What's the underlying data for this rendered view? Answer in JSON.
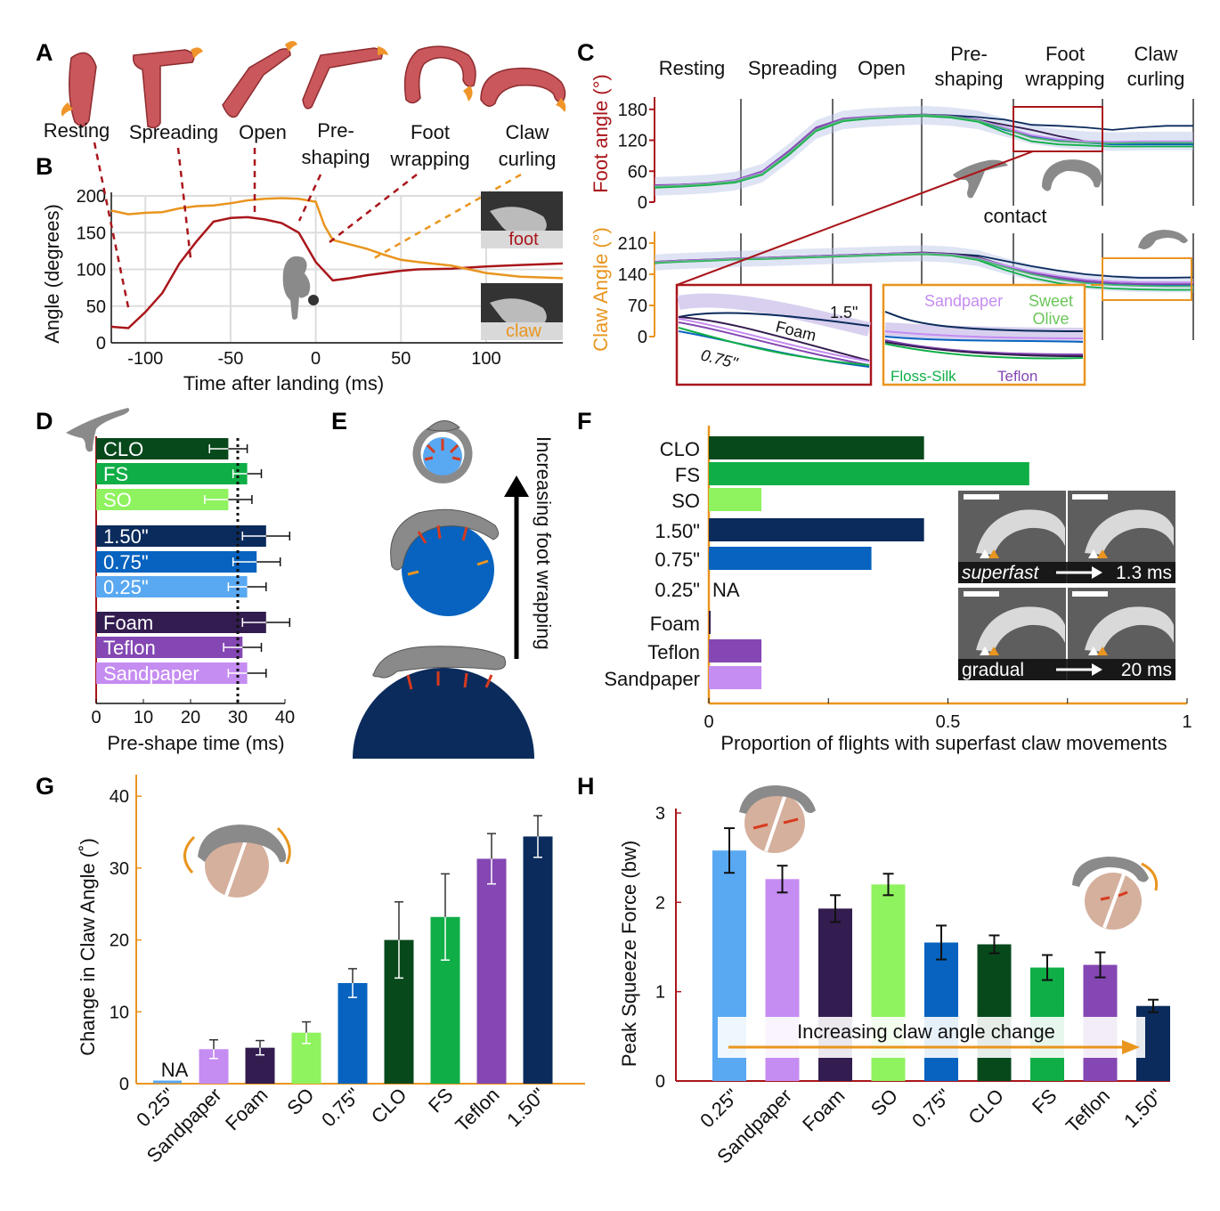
{
  "panel_letters": [
    "A",
    "B",
    "C",
    "D",
    "E",
    "F",
    "G",
    "H"
  ],
  "colors": {
    "foot": "#a9161b",
    "claw": "#e9951f",
    "CLO": "#08491c",
    "FS": "#0fae46",
    "SO": "#8ff25f",
    "d150": "#0b2b5c",
    "d075": "#0763bf",
    "d025": "#59a8f2",
    "Foam": "#331c4f",
    "Teflon": "#8447b3",
    "Sandpaper": "#c58cf2",
    "gray": "#8a8a8a"
  },
  "panelA": {
    "stages": [
      "Resting",
      "Spreading",
      "Open",
      "Pre-\nshaping",
      "Foot\nwrapping",
      "Claw\ncurling"
    ]
  },
  "panelB": {
    "chart_data": {
      "type": "line",
      "ylabel": "Angle (degrees)",
      "xlabel": "Time after landing (ms)",
      "xlim": [
        -120,
        145
      ],
      "ylim": [
        0,
        200
      ],
      "xticks": [
        -100,
        -50,
        0,
        50,
        100
      ],
      "yticks": [
        0,
        50,
        100,
        150,
        200
      ],
      "series": [
        {
          "name": "foot",
          "x": [
            -120,
            -110,
            -100,
            -90,
            -80,
            -70,
            -60,
            -50,
            -40,
            -30,
            -20,
            -10,
            0,
            10,
            20,
            30,
            40,
            50,
            60,
            80,
            100,
            120,
            145
          ],
          "y": [
            22,
            20,
            42,
            68,
            108,
            138,
            165,
            170,
            171,
            168,
            163,
            150,
            110,
            85,
            88,
            92,
            95,
            98,
            100,
            101,
            104,
            106,
            108
          ]
        },
        {
          "name": "claw",
          "x": [
            -120,
            -110,
            -100,
            -90,
            -80,
            -70,
            -60,
            -50,
            -40,
            -30,
            -20,
            -10,
            0,
            5,
            10,
            20,
            30,
            40,
            50,
            60,
            80,
            100,
            120,
            145
          ],
          "y": [
            180,
            175,
            177,
            178,
            183,
            186,
            187,
            190,
            194,
            196,
            197,
            196,
            192,
            160,
            140,
            134,
            128,
            120,
            113,
            110,
            105,
            95,
            90,
            88
          ]
        }
      ],
      "inset_labels": [
        "foot",
        "claw"
      ]
    }
  },
  "panelC": {
    "headers": [
      "Resting",
      "Spreading",
      "Open",
      "Pre-\nshaping",
      "Foot\nwrapping",
      "Claw\ncurling"
    ],
    "contact_label": "contact",
    "foot": {
      "ylabel": "Foot angle (°)",
      "yticks": [
        0,
        60,
        120,
        180
      ],
      "chart_data": {
        "type": "line",
        "ylim": [
          0,
          190
        ],
        "x": [
          0,
          0.05,
          0.1,
          0.15,
          0.2,
          0.25,
          0.3,
          0.35,
          0.4,
          0.45,
          0.5,
          0.55,
          0.6,
          0.65,
          0.7,
          0.75,
          0.8,
          0.85,
          0.9,
          0.95,
          1.0
        ],
        "series": [
          {
            "name": "1.5\"",
            "y": [
              30,
              32,
              35,
              40,
              55,
              95,
              140,
              160,
              165,
              168,
              170,
              168,
              165,
              160,
              150,
              148,
              145,
              140,
              145,
              148,
              148
            ]
          },
          {
            "name": "Foam",
            "y": [
              32,
              34,
              36,
              42,
              58,
              98,
              142,
              160,
              164,
              166,
              168,
              166,
              160,
              150,
              140,
              128,
              118,
              115,
              115,
              114,
              114
            ]
          },
          {
            "name": "0.75\"",
            "y": [
              30,
              31,
              34,
              40,
              56,
              94,
              140,
              158,
              163,
              166,
              168,
              165,
              158,
              140,
              128,
              120,
              115,
              112,
              112,
              112,
              112
            ]
          },
          {
            "name": "Teflon",
            "y": [
              33,
              34,
              37,
              43,
              60,
              100,
              145,
              162,
              166,
              168,
              170,
              167,
              160,
              143,
              126,
              118,
              116,
              115,
              116,
              116,
              116
            ]
          },
          {
            "name": "Sandpaper",
            "y": [
              31,
              33,
              36,
              42,
              57,
              96,
              141,
              160,
              165,
              167,
              169,
              166,
              159,
              145,
              130,
              122,
              118,
              117,
              118,
              118,
              118
            ]
          },
          {
            "name": "Floss-Silk",
            "y": [
              28,
              30,
              33,
              38,
              53,
              92,
              138,
              157,
              162,
              165,
              167,
              164,
              156,
              135,
              118,
              112,
              110,
              108,
              108,
              108,
              108
            ]
          },
          {
            "name": "Sweet Olive",
            "y": [
              30,
              32,
              35,
              40,
              55,
              95,
              140,
              159,
              164,
              167,
              169,
              166,
              158,
              142,
              125,
              118,
              115,
              114,
              115,
              115,
              115
            ]
          }
        ]
      }
    },
    "claw": {
      "ylabel": "Claw Angle (°)",
      "yticks": [
        0,
        70,
        140,
        210
      ],
      "chart_data": {
        "type": "line",
        "ylim": [
          0,
          220
        ],
        "x": [
          0,
          0.05,
          0.1,
          0.15,
          0.2,
          0.25,
          0.3,
          0.35,
          0.4,
          0.45,
          0.5,
          0.55,
          0.6,
          0.65,
          0.7,
          0.75,
          0.8,
          0.85,
          0.9,
          0.95,
          1.0
        ],
        "series": [
          {
            "name": "1.5\"",
            "y": [
              165,
              170,
              172,
              175,
              176,
              178,
              180,
              182,
              184,
              186,
              188,
              186,
              182,
              170,
              158,
              148,
              140,
              135,
              132,
              132,
              133
            ]
          },
          {
            "name": "Foam",
            "y": [
              168,
              171,
              173,
              175,
              177,
              179,
              181,
              183,
              185,
              187,
              189,
              186,
              178,
              160,
              145,
              135,
              125,
              120,
              118,
              117,
              117
            ]
          },
          {
            "name": "0.75\"",
            "y": [
              166,
              169,
              171,
              174,
              175,
              177,
              179,
              181,
              183,
              185,
              186,
              183,
              175,
              158,
              142,
              130,
              122,
              118,
              116,
              115,
              115
            ]
          },
          {
            "name": "Teflon",
            "y": [
              168,
              171,
              173,
              176,
              177,
              179,
              181,
              183,
              185,
              187,
              188,
              185,
              176,
              158,
              142,
              132,
              124,
              120,
              118,
              118,
              118
            ]
          },
          {
            "name": "Sandpaper",
            "y": [
              167,
              170,
              172,
              175,
              176,
              178,
              180,
              182,
              184,
              186,
              187,
              184,
              176,
              160,
              146,
              136,
              128,
              124,
              122,
              122,
              122
            ]
          },
          {
            "name": "Floss-Silk",
            "y": [
              165,
              168,
              170,
              173,
              174,
              176,
              178,
              180,
              182,
              184,
              185,
              182,
              172,
              150,
              132,
              120,
              112,
              108,
              106,
              105,
              105
            ]
          },
          {
            "name": "Sweet Olive",
            "y": [
              166,
              169,
              171,
              174,
              175,
              177,
              179,
              181,
              183,
              185,
              186,
              183,
              174,
              156,
              140,
              128,
              120,
              116,
              114,
              113,
              113
            ]
          }
        ]
      }
    },
    "inset_left": {
      "labels": [
        "1.5\"",
        "Foam",
        "0.75\""
      ]
    },
    "inset_right": {
      "labels": [
        "Sandpaper",
        "Sweet\nOlive",
        "Floss-Silk",
        "Teflon"
      ]
    }
  },
  "panelD": {
    "chart_data": {
      "type": "bar",
      "xlabel": "Pre-shape time (ms)",
      "xlim": [
        0,
        40
      ],
      "xticks": [
        0,
        10,
        20,
        30,
        40
      ],
      "reference_line": 30,
      "categories": [
        "CLO",
        "FS",
        "SO",
        "1.50\"",
        "0.75\"",
        "0.25\"",
        "Foam",
        "Teflon",
        "Sandpaper"
      ],
      "values": [
        28,
        32,
        28,
        36,
        34,
        32,
        36,
        31,
        32
      ],
      "errors": [
        4,
        3,
        5,
        5,
        5,
        4,
        5,
        4,
        4
      ],
      "color_keys": [
        "CLO",
        "FS",
        "SO",
        "d150",
        "d075",
        "d025",
        "Foam",
        "Teflon",
        "Sandpaper"
      ]
    }
  },
  "panelE": {
    "label": "Increasing foot wrapping"
  },
  "panelF": {
    "chart_data": {
      "type": "bar",
      "xlabel": "Proportion of flights with superfast claw movements",
      "xlim": [
        0,
        1
      ],
      "xticks": [
        0,
        0.5,
        1
      ],
      "xtick_labels": [
        "0",
        "0.5",
        "1"
      ],
      "categories": [
        "CLO",
        "FS",
        "SO",
        "1.50\"",
        "0.75\"",
        "0.25\"",
        "Foam",
        "Teflon",
        "Sandpaper"
      ],
      "values": [
        0.45,
        0.67,
        0.11,
        0.45,
        0.34,
        null,
        0.003,
        0.11,
        0.11
      ],
      "color_keys": [
        "CLO",
        "FS",
        "SO",
        "d150",
        "d075",
        "d025",
        "Foam",
        "Teflon",
        "Sandpaper"
      ],
      "na_label": "NA"
    },
    "insets": [
      {
        "left": "superfast",
        "right": "1.3 ms"
      },
      {
        "left": "gradual",
        "right": "20 ms"
      }
    ]
  },
  "panelG": {
    "chart_data": {
      "type": "bar",
      "ylabel": "Change in Claw Angle (˚)",
      "ylim": [
        0,
        43
      ],
      "yticks": [
        0,
        10,
        20,
        30,
        40
      ],
      "categories": [
        "0.25\"",
        "Sandpaper",
        "Foam",
        "SO",
        "0.75\"",
        "CLO",
        "FS",
        "Teflon",
        "1.50\""
      ],
      "values": [
        0,
        4.8,
        5.0,
        7.1,
        14.0,
        20.0,
        23.2,
        31.3,
        34.4
      ],
      "errors": [
        0,
        1.3,
        1.0,
        1.5,
        2.0,
        5.3,
        6.0,
        3.5,
        2.9
      ],
      "color_keys": [
        "d025",
        "Sandpaper",
        "Foam",
        "SO",
        "d075",
        "CLO",
        "FS",
        "Teflon",
        "d150"
      ],
      "na_label": "NA"
    }
  },
  "panelH": {
    "chart_data": {
      "type": "bar",
      "ylabel": "Peak Squeeze Force (bw)",
      "ylim": [
        0,
        3.05
      ],
      "yticks": [
        0,
        1,
        2,
        3
      ],
      "categories": [
        "0.25\"",
        "Sandpaper",
        "Foam",
        "SO",
        "0.75\"",
        "CLO",
        "FS",
        "Teflon",
        "1.50\""
      ],
      "values": [
        2.58,
        2.26,
        1.93,
        2.2,
        1.55,
        1.53,
        1.27,
        1.3,
        0.84
      ],
      "errors": [
        0.25,
        0.15,
        0.15,
        0.12,
        0.19,
        0.1,
        0.14,
        0.14,
        0.07
      ],
      "color_keys": [
        "d025",
        "Sandpaper",
        "Foam",
        "SO",
        "d075",
        "CLO",
        "FS",
        "Teflon",
        "d150"
      ],
      "arrow_label": "Increasing claw angle change"
    }
  }
}
